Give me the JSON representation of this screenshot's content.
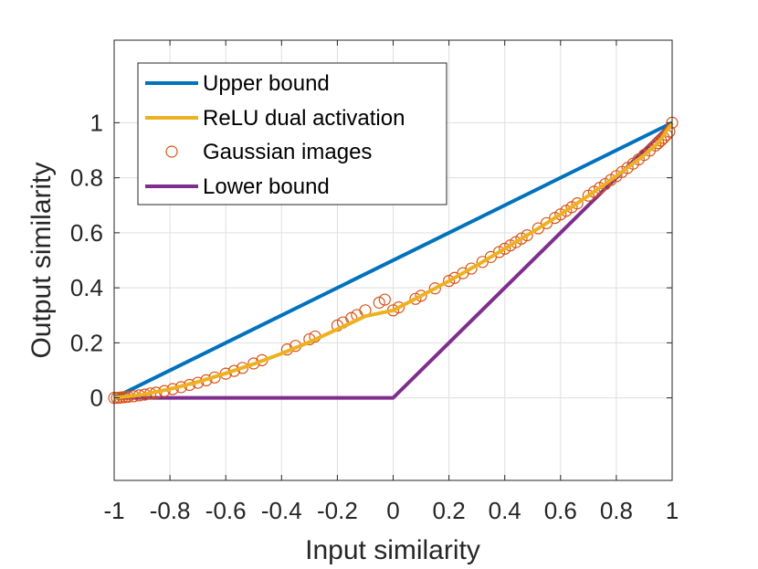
{
  "chart_data": {
    "type": "line",
    "title": "",
    "xlabel": "Input similarity",
    "ylabel": "Output similarity",
    "xlim": [
      -1,
      1
    ],
    "ylim": [
      -0.3,
      1.3
    ],
    "grid": true,
    "legend_position": "top-left",
    "x_ticks": [
      -1,
      -0.8,
      -0.6,
      -0.4,
      -0.2,
      0,
      0.2,
      0.4,
      0.6,
      0.8,
      1
    ],
    "x_tick_labels": [
      "-1",
      "-0.8",
      "-0.6",
      "-0.4",
      "-0.2",
      "0",
      "0.2",
      "0.4",
      "0.6",
      "0.8",
      "1"
    ],
    "y_ticks": [
      0,
      0.2,
      0.4,
      0.6,
      0.8,
      1
    ],
    "y_tick_labels": [
      "0",
      "0.2",
      "0.4",
      "0.6",
      "0.8",
      "1"
    ],
    "series": [
      {
        "name": "Upper bound",
        "kind": "line",
        "color": "#0072BD",
        "x": [
          -1,
          1
        ],
        "y": [
          0,
          1
        ]
      },
      {
        "name": "ReLU dual activation",
        "kind": "line",
        "color": "#EDB120",
        "x": [
          -1,
          -0.9,
          -0.8,
          -0.7,
          -0.6,
          -0.5,
          -0.4,
          -0.3,
          -0.2,
          -0.1,
          0,
          0.1,
          0.2,
          0.3,
          0.4,
          0.5,
          0.6,
          0.7,
          0.8,
          0.9,
          0.95,
          1
        ],
        "y": [
          0,
          0.011,
          0.032,
          0.058,
          0.089,
          0.123,
          0.161,
          0.203,
          0.249,
          0.297,
          0.318,
          0.371,
          0.425,
          0.482,
          0.542,
          0.603,
          0.667,
          0.735,
          0.806,
          0.883,
          0.926,
          1
        ]
      },
      {
        "name": "Gaussian images",
        "kind": "scatter",
        "color": "#D95319",
        "x": [
          -1,
          -0.99,
          -0.98,
          -0.97,
          -0.96,
          -0.95,
          -0.93,
          -0.91,
          -0.89,
          -0.87,
          -0.85,
          -0.82,
          -0.79,
          -0.76,
          -0.73,
          -0.7,
          -0.67,
          -0.64,
          -0.6,
          -0.57,
          -0.54,
          -0.5,
          -0.47,
          -0.38,
          -0.35,
          -0.3,
          -0.28,
          -0.2,
          -0.18,
          -0.15,
          -0.13,
          -0.1,
          -0.05,
          -0.03,
          0,
          0.02,
          0.08,
          0.1,
          0.15,
          0.2,
          0.22,
          0.25,
          0.28,
          0.32,
          0.35,
          0.38,
          0.4,
          0.42,
          0.44,
          0.46,
          0.48,
          0.52,
          0.55,
          0.58,
          0.6,
          0.62,
          0.64,
          0.66,
          0.7,
          0.72,
          0.74,
          0.76,
          0.78,
          0.8,
          0.82,
          0.84,
          0.86,
          0.88,
          0.9,
          0.92,
          0.94,
          0.95,
          0.96,
          0.97,
          0.98,
          0.99,
          1
        ],
        "y": [
          0,
          0.0,
          0.001,
          0.002,
          0.003,
          0.004,
          0.006,
          0.009,
          0.012,
          0.016,
          0.019,
          0.025,
          0.032,
          0.039,
          0.047,
          0.055,
          0.064,
          0.074,
          0.088,
          0.098,
          0.109,
          0.125,
          0.137,
          0.176,
          0.189,
          0.213,
          0.223,
          0.263,
          0.274,
          0.29,
          0.301,
          0.318,
          0.346,
          0.357,
          0.318,
          0.329,
          0.36,
          0.371,
          0.398,
          0.425,
          0.436,
          0.453,
          0.47,
          0.494,
          0.512,
          0.53,
          0.542,
          0.554,
          0.566,
          0.579,
          0.591,
          0.616,
          0.635,
          0.654,
          0.667,
          0.68,
          0.693,
          0.707,
          0.735,
          0.749,
          0.763,
          0.777,
          0.792,
          0.806,
          0.821,
          0.836,
          0.851,
          0.867,
          0.883,
          0.899,
          0.917,
          0.926,
          0.935,
          0.945,
          0.956,
          0.968,
          1
        ]
      },
      {
        "name": "Lower bound",
        "kind": "line",
        "color": "#7E2F8E",
        "x": [
          -1,
          0,
          1
        ],
        "y": [
          0,
          0,
          1
        ]
      }
    ]
  }
}
